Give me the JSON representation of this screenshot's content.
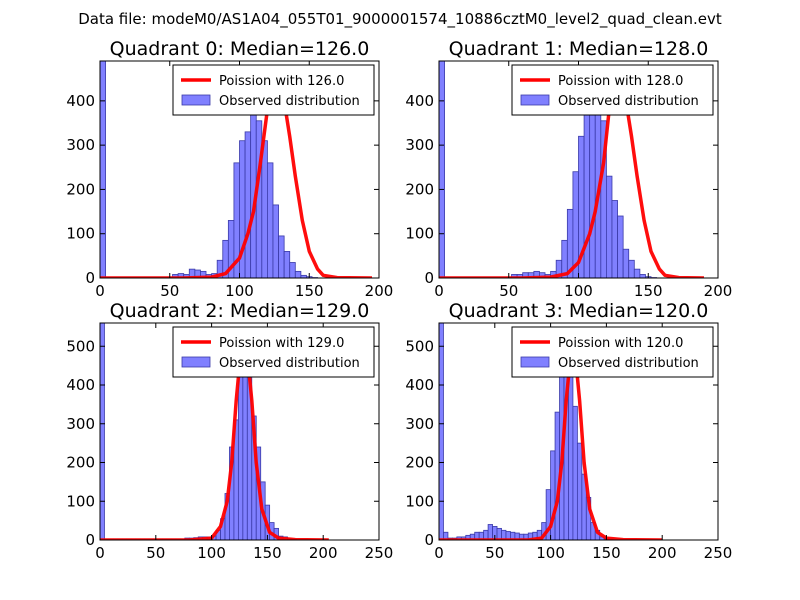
{
  "suptitle": "Data file: modeM0/AS1A04_055T01_9000001574_10886cztM0_level2_quad_clean.evt",
  "legend_labels": {
    "fit": "Poission with {v}",
    "obs": "Observed distribution"
  },
  "colors": {
    "fit": "#ff0000",
    "bar_fill": "#8080ff",
    "bar_edge": "#3a3aa8",
    "frame": "#000000"
  },
  "chart_data": [
    {
      "type": "bar",
      "title": "Quadrant 0: Median=126.0",
      "median": 126.0,
      "fit_label": "Poission with 126.0",
      "xlim": [
        0,
        200
      ],
      "ylim": [
        0,
        490
      ],
      "xticks": [
        0,
        50,
        100,
        150,
        200
      ],
      "yticks": [
        0,
        100,
        200,
        300,
        400
      ],
      "bin_width": 4,
      "bin_start": 0,
      "counts": [
        490,
        2,
        2,
        2,
        2,
        2,
        2,
        2,
        2,
        2,
        2,
        2,
        2,
        8,
        10,
        8,
        20,
        18,
        15,
        8,
        10,
        40,
        85,
        130,
        260,
        310,
        330,
        425,
        355,
        310,
        260,
        165,
        95,
        60,
        35,
        15,
        6,
        3,
        1
      ],
      "fit_x": [
        0,
        30,
        60,
        80,
        90,
        100,
        106,
        110,
        115,
        120,
        124,
        126,
        128,
        132,
        136,
        140,
        145,
        150,
        156,
        160,
        170,
        195
      ],
      "fit_y": [
        0,
        0,
        0,
        2,
        10,
        45,
        100,
        150,
        260,
        380,
        455,
        470,
        455,
        400,
        320,
        230,
        130,
        60,
        20,
        6,
        1,
        0
      ]
    },
    {
      "type": "bar",
      "title": "Quadrant 1: Median=128.0",
      "median": 128.0,
      "fit_label": "Poission with 128.0",
      "xlim": [
        0,
        200
      ],
      "ylim": [
        0,
        490
      ],
      "xticks": [
        0,
        50,
        100,
        150,
        200
      ],
      "yticks": [
        0,
        100,
        200,
        300,
        400
      ],
      "bin_width": 4,
      "bin_start": 0,
      "counts": [
        490,
        2,
        2,
        2,
        2,
        2,
        2,
        2,
        2,
        2,
        2,
        2,
        2,
        8,
        8,
        12,
        12,
        15,
        12,
        8,
        15,
        40,
        85,
        155,
        240,
        320,
        380,
        430,
        380,
        355,
        230,
        175,
        140,
        65,
        40,
        20,
        8,
        3,
        1
      ],
      "fit_x": [
        0,
        30,
        60,
        80,
        92,
        100,
        108,
        112,
        118,
        122,
        126,
        128,
        130,
        134,
        138,
        142,
        147,
        152,
        158,
        162,
        172,
        190
      ],
      "fit_y": [
        0,
        0,
        0,
        2,
        10,
        35,
        100,
        150,
        260,
        380,
        455,
        470,
        455,
        400,
        320,
        230,
        130,
        60,
        20,
        6,
        1,
        0
      ]
    },
    {
      "type": "bar",
      "title": "Quadrant 2: Median=129.0",
      "median": 129.0,
      "fit_label": "Poission with 129.0",
      "xlim": [
        0,
        250
      ],
      "ylim": [
        0,
        560
      ],
      "xticks": [
        0,
        50,
        100,
        150,
        200,
        250
      ],
      "yticks": [
        0,
        100,
        200,
        300,
        400,
        500
      ],
      "bin_width": 4,
      "bin_start": 0,
      "counts": [
        560,
        2,
        2,
        2,
        2,
        2,
        2,
        2,
        2,
        2,
        2,
        2,
        2,
        2,
        2,
        2,
        2,
        2,
        2,
        5,
        5,
        6,
        8,
        8,
        8,
        10,
        25,
        55,
        120,
        240,
        310,
        460,
        510,
        440,
        320,
        240,
        150,
        90,
        45,
        30,
        10,
        8,
        3,
        2
      ],
      "fit_x": [
        0,
        40,
        80,
        100,
        108,
        114,
        118,
        122,
        126,
        129,
        132,
        136,
        140,
        145,
        152,
        160,
        175,
        205
      ],
      "fit_y": [
        0,
        0,
        0,
        5,
        35,
        100,
        200,
        360,
        480,
        520,
        480,
        360,
        200,
        80,
        20,
        5,
        1,
        0
      ]
    },
    {
      "type": "bar",
      "title": "Quadrant 3: Median=120.0",
      "median": 120.0,
      "fit_label": "Poission with 120.0",
      "xlim": [
        0,
        250
      ],
      "ylim": [
        0,
        560
      ],
      "xticks": [
        0,
        50,
        100,
        150,
        200,
        250
      ],
      "yticks": [
        0,
        100,
        200,
        300,
        400,
        500
      ],
      "bin_width": 4,
      "bin_start": 0,
      "counts": [
        560,
        20,
        5,
        5,
        8,
        8,
        12,
        15,
        20,
        20,
        25,
        40,
        35,
        30,
        25,
        22,
        20,
        18,
        15,
        15,
        18,
        20,
        25,
        45,
        130,
        230,
        330,
        470,
        480,
        460,
        345,
        250,
        170,
        110,
        45,
        25,
        8,
        3,
        2
      ],
      "fit_x": [
        0,
        40,
        80,
        92,
        100,
        106,
        110,
        114,
        118,
        120,
        122,
        126,
        130,
        135,
        142,
        150,
        165,
        200
      ],
      "fit_y": [
        0,
        0,
        0,
        5,
        35,
        100,
        200,
        360,
        480,
        520,
        480,
        360,
        200,
        80,
        20,
        5,
        1,
        0
      ]
    }
  ]
}
